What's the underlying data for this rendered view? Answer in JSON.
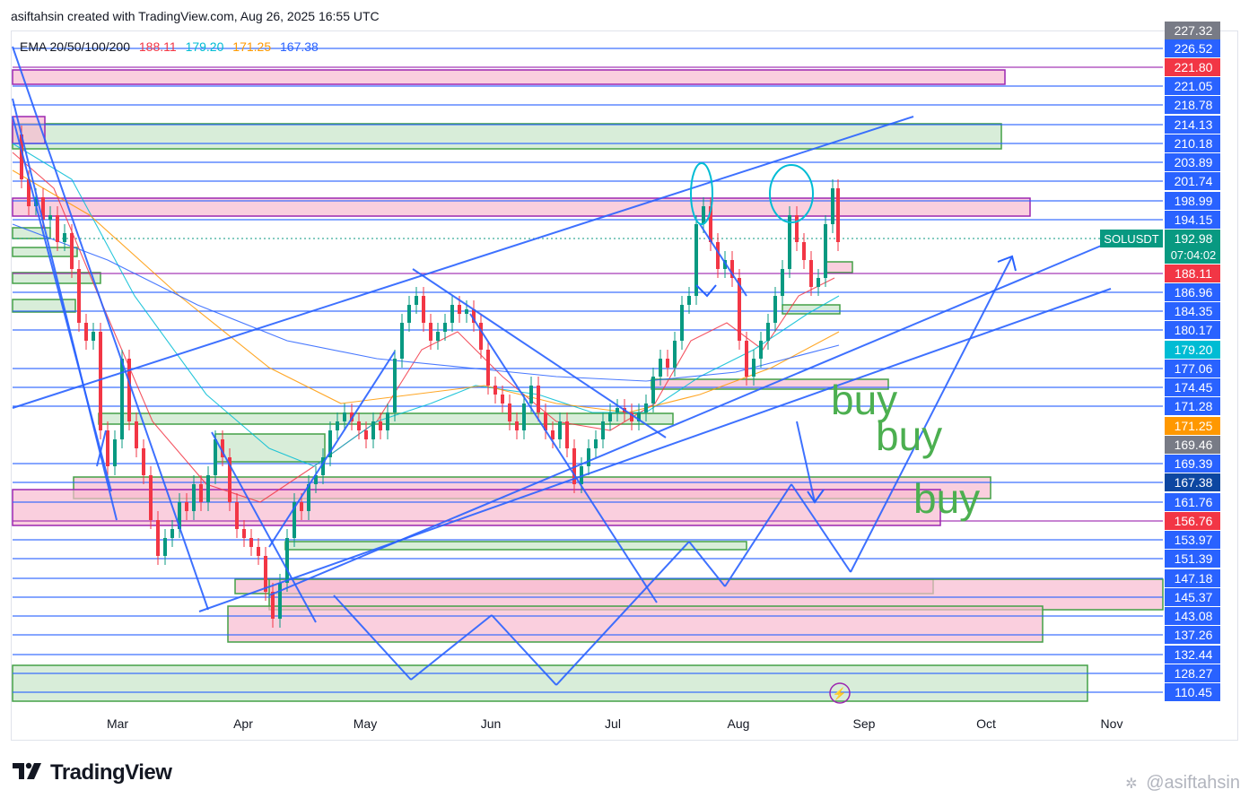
{
  "header": {
    "caption": "asiftahsin created with TradingView.com, Aug 26, 2025 16:55 UTC"
  },
  "legend": {
    "label": "EMA 20/50/100/200",
    "values": [
      {
        "text": "188.11",
        "color": "#f23645"
      },
      {
        "text": "179.20",
        "color": "#00bcd4"
      },
      {
        "text": "171.25",
        "color": "#ff9800"
      },
      {
        "text": "167.38",
        "color": "#2962ff"
      }
    ]
  },
  "branding": {
    "logo_text": "TradingView",
    "watermark": "@asiftahsin",
    "logo_icon": "tradingview-logo-icon",
    "watermark_icon": "watermark-icon"
  },
  "colors": {
    "line_blue": "#2962ff",
    "zone_green_fill": "#c8e6c9",
    "zone_green_stroke": "#43a047",
    "zone_pink_fill": "#f8bbd0",
    "zone_purple_stroke": "#9c27b0",
    "candle_up": "#089981",
    "candle_down": "#f23645",
    "buy_text": "#4caf50"
  },
  "chart_data": {
    "type": "candlestick",
    "symbol": "SOLUSDT",
    "current_price": "192.98",
    "countdown": "07:04:02",
    "x_ticks": [
      "Mar",
      "Apr",
      "May",
      "Jun",
      "Jul",
      "Aug",
      "Sep",
      "Oct",
      "Nov"
    ],
    "y_range": [
      105,
      234
    ],
    "price_levels": [
      {
        "text": "227.32",
        "value": 227.32,
        "bg": "#787b86"
      },
      {
        "text": "226.52",
        "value": 226.52,
        "bg": "#2962ff"
      },
      {
        "text": "221.80",
        "value": 221.8,
        "bg": "#f23645"
      },
      {
        "text": "221.05",
        "value": 221.05,
        "bg": "#2962ff"
      },
      {
        "text": "218.78",
        "value": 218.78,
        "bg": "#2962ff"
      },
      {
        "text": "214.13",
        "value": 214.13,
        "bg": "#2962ff"
      },
      {
        "text": "210.18",
        "value": 210.18,
        "bg": "#2962ff"
      },
      {
        "text": "203.89",
        "value": 203.89,
        "bg": "#2962ff"
      },
      {
        "text": "201.74",
        "value": 201.74,
        "bg": "#2962ff"
      },
      {
        "text": "198.99",
        "value": 198.99,
        "bg": "#2962ff"
      },
      {
        "text": "194.15",
        "value": 194.15,
        "bg": "#2962ff"
      },
      {
        "text": "188.11",
        "value": 188.11,
        "bg": "#f23645"
      },
      {
        "text": "186.96",
        "value": 186.96,
        "bg": "#2962ff"
      },
      {
        "text": "184.35",
        "value": 184.35,
        "bg": "#2962ff"
      },
      {
        "text": "180.17",
        "value": 180.17,
        "bg": "#2962ff"
      },
      {
        "text": "179.20",
        "value": 179.2,
        "bg": "#00bcd4"
      },
      {
        "text": "177.06",
        "value": 177.06,
        "bg": "#2962ff"
      },
      {
        "text": "174.45",
        "value": 174.45,
        "bg": "#2962ff"
      },
      {
        "text": "171.28",
        "value": 171.28,
        "bg": "#2962ff"
      },
      {
        "text": "171.25",
        "value": 171.25,
        "bg": "#ff9800"
      },
      {
        "text": "169.46",
        "value": 169.46,
        "bg": "#787b86"
      },
      {
        "text": "169.39",
        "value": 169.39,
        "bg": "#2962ff"
      },
      {
        "text": "167.38",
        "value": 167.38,
        "bg": "#0d47a1"
      },
      {
        "text": "161.76",
        "value": 161.76,
        "bg": "#2962ff"
      },
      {
        "text": "156.76",
        "value": 156.76,
        "bg": "#f23645"
      },
      {
        "text": "153.97",
        "value": 153.97,
        "bg": "#2962ff"
      },
      {
        "text": "151.39",
        "value": 151.39,
        "bg": "#2962ff"
      },
      {
        "text": "147.18",
        "value": 147.18,
        "bg": "#2962ff"
      },
      {
        "text": "145.37",
        "value": 145.37,
        "bg": "#2962ff"
      },
      {
        "text": "143.08",
        "value": 143.08,
        "bg": "#2962ff"
      },
      {
        "text": "137.26",
        "value": 137.26,
        "bg": "#2962ff"
      },
      {
        "text": "132.44",
        "value": 132.44,
        "bg": "#2962ff"
      },
      {
        "text": "128.27",
        "value": 128.27,
        "bg": "#2962ff"
      },
      {
        "text": "110.45",
        "value": 110.45,
        "bg": "#2962ff"
      }
    ],
    "annotations": [
      "buy",
      "buy",
      "buy"
    ],
    "series": [
      {
        "name": "EMA 20",
        "value": 188.11,
        "color": "#f23645"
      },
      {
        "name": "EMA 50",
        "value": 179.2,
        "color": "#00bcd4"
      },
      {
        "name": "EMA 100",
        "value": 171.25,
        "color": "#ff9800"
      },
      {
        "name": "EMA 200",
        "value": 167.38,
        "color": "#2962ff"
      }
    ]
  }
}
